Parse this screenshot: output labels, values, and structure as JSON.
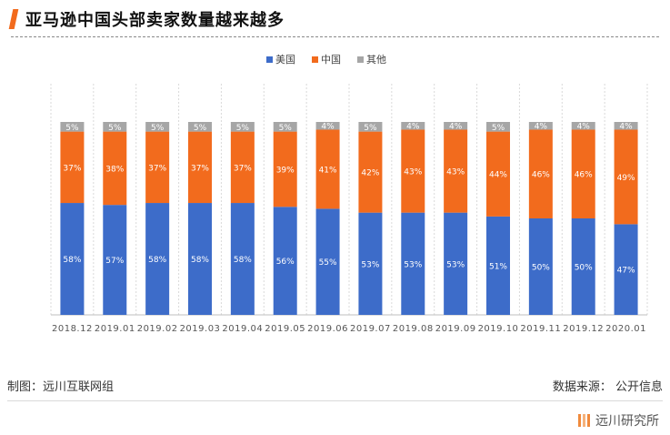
{
  "header": {
    "title": "亚马逊中国头部卖家数量越来越多"
  },
  "chart_data": {
    "type": "bar",
    "stacked": true,
    "normalized": true,
    "title": "",
    "categories": [
      "2018.12",
      "2019.01",
      "2019.02",
      "2019.03",
      "2019.04",
      "2019.05",
      "2019.06",
      "2019.07",
      "2019.08",
      "2019.09",
      "2019.10",
      "2019.11",
      "2019.12",
      "2020.01"
    ],
    "series": [
      {
        "name": "美国",
        "color": "#3d6cc9",
        "values": [
          58,
          57,
          58,
          58,
          58,
          56,
          55,
          53,
          53,
          53,
          51,
          50,
          50,
          47
        ]
      },
      {
        "name": "中国",
        "color": "#f26b1d",
        "values": [
          37,
          38,
          37,
          37,
          37,
          39,
          41,
          42,
          43,
          43,
          44,
          46,
          46,
          49
        ]
      },
      {
        "name": "其他",
        "color": "#a6a6a6",
        "values": [
          5,
          5,
          5,
          5,
          5,
          5,
          4,
          5,
          4,
          4,
          5,
          4,
          4,
          4
        ]
      }
    ],
    "value_suffix": "%",
    "ylim": [
      0,
      100
    ],
    "legend_position": "top-center",
    "grid": "vertical-dashed"
  },
  "footer": {
    "left": "制图：远川互联网组",
    "right": "数据来源： 公开信息",
    "brand": "远川研究所"
  }
}
